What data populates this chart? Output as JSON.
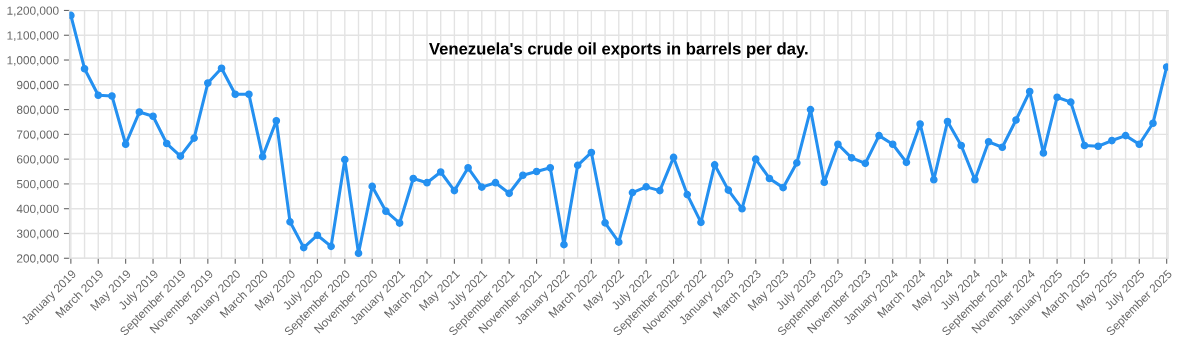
{
  "chart_data": {
    "type": "line",
    "title": "Venezuela's crude oil exports in barrels per day.",
    "categories": [
      "January 2019",
      null,
      "March 2019",
      null,
      "May 2019",
      null,
      "July 2019",
      null,
      "September 2019",
      null,
      "November 2019",
      null,
      "January 2020",
      null,
      "March 2020",
      null,
      "May 2020",
      null,
      "July 2020",
      null,
      "September 2020",
      null,
      "November 2020",
      null,
      "January 2021",
      null,
      "March 2021",
      null,
      "May 2021",
      null,
      "July 2021",
      null,
      "September 2021",
      null,
      "November 2021",
      null,
      "January 2022",
      null,
      "March 2022",
      null,
      "May 2022",
      null,
      "July 2022",
      null,
      "September 2022",
      null,
      "November 2022",
      null,
      "January 2023",
      null,
      "March 2023",
      null,
      "May 2023",
      null,
      "July 2023",
      null,
      "September 2023",
      null,
      "November 2023",
      null,
      "January 2024",
      null,
      "March 2024",
      null,
      "May 2024",
      null,
      "July 2024",
      null,
      "September 2024",
      null,
      "November 2024",
      null,
      "January 2025",
      null,
      "March 2025",
      null,
      "May 2025",
      null,
      "July 2025",
      null,
      "September 2025"
    ],
    "series": [
      {
        "color": "#2490f0",
        "values": [
          1180000,
          965000,
          858000,
          855000,
          660000,
          790000,
          773000,
          663000,
          612000,
          685000,
          907000,
          967000,
          862000,
          862000,
          610000,
          755000,
          347000,
          243000,
          293000,
          248000,
          598000,
          220000,
          490000,
          390000,
          342000,
          522000,
          505000,
          548000,
          473000,
          565000,
          487000,
          505000,
          462000,
          535000,
          550000,
          565000,
          255000,
          575000,
          627000,
          343000,
          265000,
          465000,
          488000,
          473000,
          607000,
          457000,
          345000,
          577000,
          475000,
          400000,
          600000,
          522000,
          485000,
          585000,
          800000,
          507000,
          660000,
          605000,
          583000,
          695000,
          660000,
          587000,
          742000,
          517000,
          752000,
          655000,
          517000,
          670000,
          648000,
          758000,
          873000,
          625000,
          850000,
          830000,
          655000,
          652000,
          675000,
          695000,
          660000,
          745000,
          972000
        ]
      }
    ],
    "ylim": [
      200000,
      1200000
    ],
    "yticks": [
      {
        "value": 200000,
        "label": "200,000"
      },
      {
        "value": 300000,
        "label": "300,000"
      },
      {
        "value": 400000,
        "label": "400,000"
      },
      {
        "value": 500000,
        "label": "500,000"
      },
      {
        "value": 600000,
        "label": "600,000"
      },
      {
        "value": 700000,
        "label": "700,000"
      },
      {
        "value": 800000,
        "label": "800,000"
      },
      {
        "value": 900000,
        "label": "900,000"
      },
      {
        "value": 1000000,
        "label": "1,000,000"
      },
      {
        "value": 1100000,
        "label": "1,100,000"
      },
      {
        "value": 1200000,
        "label": "1,200,000"
      }
    ],
    "grid": true,
    "marker": "circle",
    "line_style": "solid"
  }
}
